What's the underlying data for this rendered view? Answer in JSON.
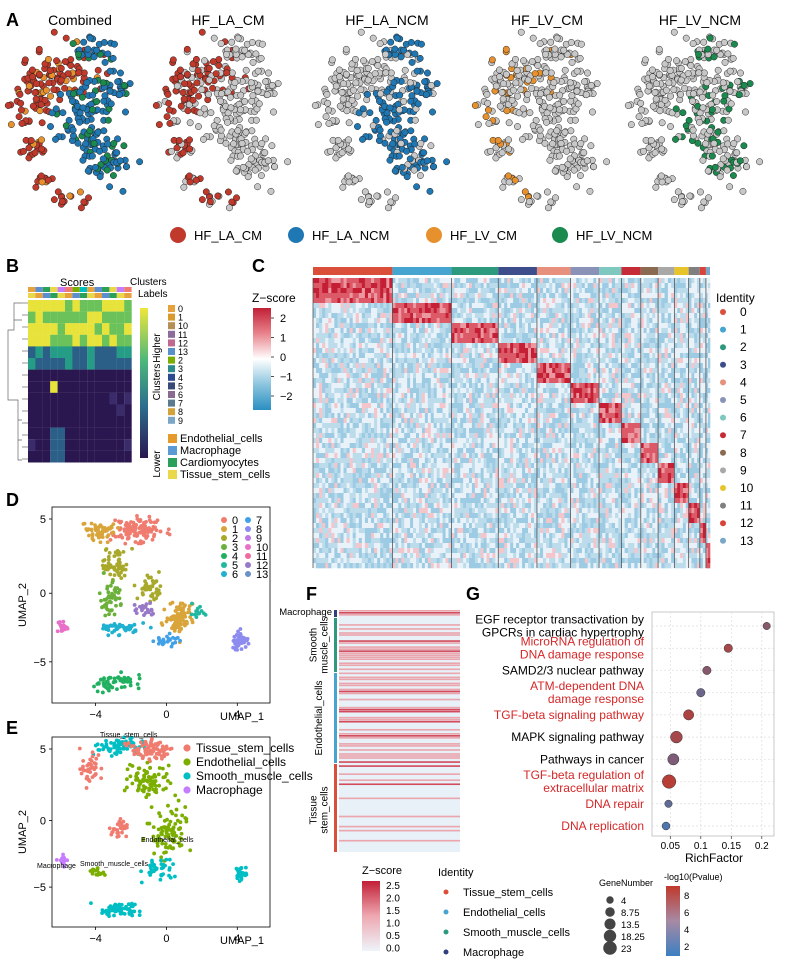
{
  "panels": {
    "A": {
      "letter": "A",
      "titles": [
        "Combined",
        "HF_LA_CM",
        "HF_LA_NCM",
        "HF_LV_CM",
        "HF_LV_NCM"
      ],
      "legend": [
        {
          "label": "HF_LA_CM",
          "color": "#c0392b"
        },
        {
          "label": "HF_LA_NCM",
          "color": "#1f78b4"
        },
        {
          "label": "HF_LV_CM",
          "color": "#e6912e"
        },
        {
          "label": "HF_LV_NCM",
          "color": "#1a8a4f"
        }
      ],
      "background_color": "#c8c8c8"
    },
    "B": {
      "letter": "B",
      "top_labels": {
        "scores": "Scores",
        "clusters": "Clusters",
        "labels": "Labels"
      },
      "colorbar": {
        "higher": "Higher",
        "lower": "Lower",
        "mid": "Clusters"
      },
      "cluster_legend": [
        "0",
        "1",
        "10",
        "11",
        "12",
        "13",
        "2",
        "3",
        "4",
        "5",
        "6",
        "7",
        "8",
        "9"
      ],
      "label_legend": [
        {
          "label": "Endothelial_cells",
          "color": "#e49b2b"
        },
        {
          "label": "Macrophage",
          "color": "#5a9bd5"
        },
        {
          "label": "Cardiomyocytes",
          "color": "#2aa05a"
        },
        {
          "label": "Tissue_stem_cells",
          "color": "#e8d84a"
        }
      ]
    },
    "C": {
      "letter": "C",
      "colorbar_title": "Z−score",
      "colorbar_ticks": [
        "2",
        "1",
        "0",
        "−1",
        "−2"
      ],
      "legend_title": "Identity",
      "identities": [
        {
          "label": "0",
          "color": "#d94f3a"
        },
        {
          "label": "1",
          "color": "#45a5d0"
        },
        {
          "label": "2",
          "color": "#2e9a7d"
        },
        {
          "label": "3",
          "color": "#3d4d8c"
        },
        {
          "label": "4",
          "color": "#e6907d"
        },
        {
          "label": "5",
          "color": "#8a92b8"
        },
        {
          "label": "6",
          "color": "#7fc8c0"
        },
        {
          "label": "7",
          "color": "#c62b38"
        },
        {
          "label": "8",
          "color": "#8a6a50"
        },
        {
          "label": "9",
          "color": "#a8a8a8"
        },
        {
          "label": "10",
          "color": "#e6c42a"
        },
        {
          "label": "11",
          "color": "#808080"
        },
        {
          "label": "12",
          "color": "#d8443c"
        },
        {
          "label": "13",
          "color": "#7aa6c8"
        }
      ]
    },
    "D": {
      "letter": "D",
      "xlabel": "UMAP_1",
      "ylabel": "UMAP_2",
      "xticks": [
        "−4",
        "0",
        "4"
      ],
      "yticks": [
        "5",
        "0",
        "−5"
      ],
      "legend_col1": [
        "0",
        "1",
        "2",
        "3",
        "4",
        "5",
        "6"
      ],
      "legend_col2": [
        "7",
        "8",
        "9",
        "10",
        "11",
        "12",
        "13"
      ],
      "colors": [
        "#f07c70",
        "#d9a53a",
        "#a8a92a",
        "#6bb03a",
        "#20b060",
        "#20b8a0",
        "#20b0d0",
        "#40a0e8",
        "#8c8cf0",
        "#c078e8",
        "#e870c8",
        "#f06aa0",
        "#9878c8",
        "#6a90c8"
      ]
    },
    "E": {
      "letter": "E",
      "xlabel": "UMAP_1",
      "ylabel": "UMAP_2",
      "xticks": [
        "−4",
        "0",
        "4"
      ],
      "yticks": [
        "5",
        "0",
        "−5"
      ],
      "legend": [
        {
          "label": "Tissue_stem_cells",
          "color": "#f07c70"
        },
        {
          "label": "Endothelial_cells",
          "color": "#7cae00"
        },
        {
          "label": "Smooth_muscle_cells",
          "color": "#00bfc4"
        },
        {
          "label": "Macrophage",
          "color": "#c77cff"
        }
      ],
      "annotations": [
        "Tissue_stem_cells",
        "Endothelial_cells",
        "Macrophage",
        "Smooth_muscle_cells"
      ]
    },
    "F": {
      "letter": "F",
      "row_groups": [
        "Macrophage",
        "Smooth\nmuscle_cells",
        "Endothelial_cells",
        "Tissue\nstem_cells"
      ],
      "colorbar_title": "Z−score",
      "colorbar_ticks": [
        "2.5",
        "2.0",
        "1.5",
        "1.0",
        "0.5",
        "0.0"
      ],
      "identity_title": "Identity",
      "identity_legend": [
        {
          "label": "Tissue_stem_cells",
          "color": "#d94f3a"
        },
        {
          "label": "Endothelial_cells",
          "color": "#45a5d0"
        },
        {
          "label": "Smooth_muscle_cells",
          "color": "#2e9a7d"
        },
        {
          "label": "Macrophage",
          "color": "#2f3f7f"
        }
      ]
    },
    "G": {
      "letter": "G",
      "xlabel": "RichFactor",
      "xticks": [
        "0.05",
        "0.1",
        "0.15",
        "0.2"
      ],
      "size_title": "GeneNumber",
      "size_legend": [
        "4",
        "8.75",
        "13.5",
        "18.25",
        "23"
      ],
      "color_title": "-log10(Pvalue)",
      "color_ticks": [
        "8",
        "6",
        "4",
        "2"
      ]
    }
  },
  "chart_data": {
    "type": "scatter",
    "title": "",
    "xlabel": "RichFactor",
    "ylabel": "",
    "xlim": [
      0.02,
      0.22
    ],
    "categories": [
      "EGF receptor transactivation by GPCRs in cardiac hypertrophy",
      "MicroRNA regulation of DNA damage response",
      "SAMD2/3 nuclear pathway",
      "ATM-dependent DNA damage response",
      "TGF-beta signaling pathway",
      "MAPK signaling pathway",
      "Pathways in cancer",
      "TGF-beta regulation of extracellular matrix",
      "DNA repair",
      "DNA replication"
    ],
    "category_colors": [
      "#000000",
      "#d62728",
      "#000000",
      "#d62728",
      "#d62728",
      "#000000",
      "#000000",
      "#d62728",
      "#d62728",
      "#d62728"
    ],
    "x": [
      0.208,
      0.145,
      0.11,
      0.1,
      0.08,
      0.06,
      0.055,
      0.048,
      0.047,
      0.043
    ],
    "gene_number": [
      4,
      6,
      6,
      6,
      11,
      16,
      14,
      23,
      4,
      5
    ],
    "neglog10_pvalue": [
      6,
      7.5,
      6,
      4.5,
      8,
      7.5,
      5.5,
      8.5,
      4,
      3
    ]
  }
}
